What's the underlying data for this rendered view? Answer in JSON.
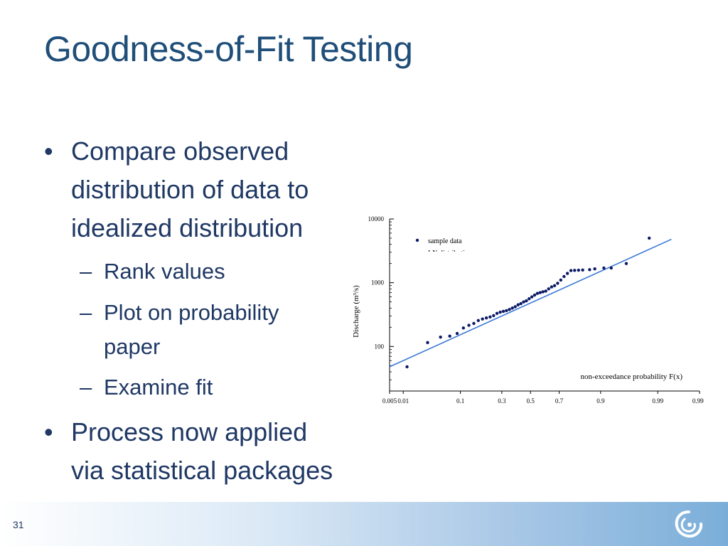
{
  "slide": {
    "title": "Goodness-of-Fit Testing",
    "page_number": "31",
    "bullets": [
      {
        "lines": [
          "Compare observed",
          "distribution of data to",
          "idealized distribution"
        ]
      },
      {
        "lines": [
          "Process now applied",
          "via statistical packages"
        ]
      }
    ],
    "sub_bullets": [
      {
        "lines": [
          "Rank values"
        ]
      },
      {
        "lines": [
          "Plot on probability",
          "paper"
        ]
      },
      {
        "lines": [
          "Examine fit"
        ]
      }
    ],
    "bullet_symbol": "•",
    "dash_symbol": "–",
    "colors": {
      "title": "#1f4e79",
      "text": "#1f3864",
      "series_points": "#0d1a66",
      "fit_line": "#3a78d6"
    }
  },
  "chart_data": {
    "type": "scatter",
    "ylabel": "Discharge (m³/s)",
    "xlabel": "non-exceedance probability F(x)",
    "y_scale": "log",
    "x_scale": "normal-probability",
    "ylim": [
      20,
      10000
    ],
    "xlim": [
      0.005,
      0.999
    ],
    "yticks": [
      "10000",
      "1000",
      "100"
    ],
    "xticks": [
      "0.005",
      "0.01",
      "0.1",
      "0.3",
      "0.5",
      "0.7",
      "0.9",
      "0.99",
      "0.999"
    ],
    "legend": [
      {
        "label": "sample data",
        "kind": "point"
      },
      {
        "label": "LN distribution",
        "kind": "line"
      }
    ],
    "legend_placement": "top-left",
    "series": [
      {
        "name": "sample data",
        "points": [
          {
            "x": 0.012,
            "y": 48
          },
          {
            "x": 0.03,
            "y": 115
          },
          {
            "x": 0.05,
            "y": 140
          },
          {
            "x": 0.07,
            "y": 145
          },
          {
            "x": 0.09,
            "y": 160
          },
          {
            "x": 0.11,
            "y": 195
          },
          {
            "x": 0.13,
            "y": 215
          },
          {
            "x": 0.15,
            "y": 230
          },
          {
            "x": 0.17,
            "y": 255
          },
          {
            "x": 0.19,
            "y": 270
          },
          {
            "x": 0.21,
            "y": 280
          },
          {
            "x": 0.23,
            "y": 290
          },
          {
            "x": 0.25,
            "y": 305
          },
          {
            "x": 0.27,
            "y": 330
          },
          {
            "x": 0.29,
            "y": 345
          },
          {
            "x": 0.31,
            "y": 355
          },
          {
            "x": 0.33,
            "y": 365
          },
          {
            "x": 0.35,
            "y": 380
          },
          {
            "x": 0.37,
            "y": 400
          },
          {
            "x": 0.39,
            "y": 420
          },
          {
            "x": 0.41,
            "y": 450
          },
          {
            "x": 0.43,
            "y": 470
          },
          {
            "x": 0.45,
            "y": 500
          },
          {
            "x": 0.47,
            "y": 520
          },
          {
            "x": 0.49,
            "y": 560
          },
          {
            "x": 0.51,
            "y": 600
          },
          {
            "x": 0.53,
            "y": 640
          },
          {
            "x": 0.55,
            "y": 680
          },
          {
            "x": 0.57,
            "y": 700
          },
          {
            "x": 0.59,
            "y": 720
          },
          {
            "x": 0.61,
            "y": 740
          },
          {
            "x": 0.63,
            "y": 800
          },
          {
            "x": 0.65,
            "y": 860
          },
          {
            "x": 0.67,
            "y": 900
          },
          {
            "x": 0.69,
            "y": 980
          },
          {
            "x": 0.71,
            "y": 1100
          },
          {
            "x": 0.73,
            "y": 1250
          },
          {
            "x": 0.75,
            "y": 1400
          },
          {
            "x": 0.77,
            "y": 1550
          },
          {
            "x": 0.79,
            "y": 1560
          },
          {
            "x": 0.81,
            "y": 1570
          },
          {
            "x": 0.83,
            "y": 1580
          },
          {
            "x": 0.86,
            "y": 1600
          },
          {
            "x": 0.88,
            "y": 1650
          },
          {
            "x": 0.91,
            "y": 1700
          },
          {
            "x": 0.93,
            "y": 1700
          },
          {
            "x": 0.96,
            "y": 2000
          },
          {
            "x": 0.985,
            "y": 5000
          }
        ]
      },
      {
        "name": "LN distribution",
        "points": [
          {
            "x": 0.005,
            "y": 48
          },
          {
            "x": 0.995,
            "y": 4800
          }
        ]
      }
    ]
  }
}
